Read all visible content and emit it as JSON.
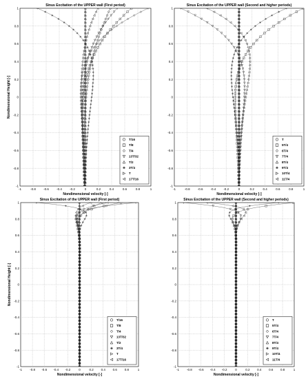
{
  "chart_data": [
    {
      "type": "line",
      "title": "Sinus Excitation of the UPPER wall (First period)",
      "xlabel": "Nondimensional velocity [-]",
      "ylabel": "Nondimensional Height [-]",
      "xlim": [
        -1,
        1
      ],
      "ylim": [
        -1,
        1
      ],
      "grid": true,
      "legend_position": "bottom-right",
      "x_ticks": [
        "-1",
        "-0.8",
        "-0.6",
        "-0.4",
        "-0.2",
        "0",
        "0.2",
        "0.4",
        "0.6",
        "0.8",
        "1"
      ],
      "y_ticks": [
        "1",
        "0.8",
        "0.6",
        "0.4",
        "0.2",
        "0",
        "-0.2",
        "-0.4",
        "-0.6",
        "-0.8",
        "-1"
      ],
      "series": [
        {
          "name": "T/16",
          "marker": "circle",
          "surface": 0.38,
          "k": 1.6
        },
        {
          "name": "T/8",
          "marker": "square",
          "surface": 0.71,
          "k": 1.9
        },
        {
          "name": "T/4",
          "marker": "diamond",
          "surface": 1.0,
          "k": 2.3
        },
        {
          "name": "13T/32",
          "marker": "tri-down",
          "surface": 0.54,
          "k": 1.8
        },
        {
          "name": "T/2",
          "marker": "tri-up",
          "surface": 0.0,
          "k": 1.4
        },
        {
          "name": "3T/4",
          "marker": "star",
          "surface": -1.0,
          "k": 2.3
        },
        {
          "name": "T",
          "marker": "tri-right",
          "surface": 0.0,
          "k": 1.3
        },
        {
          "name": "17T/16",
          "marker": "tri-left",
          "surface": 0.38,
          "k": 1.5
        }
      ]
    },
    {
      "type": "line",
      "title": "Sinus Excitation of the UPPER wall (Second and higher periods)",
      "xlabel": "Nondimensional velocity [-]",
      "ylabel": "",
      "xlim": [
        -1,
        1
      ],
      "ylim": [
        -1,
        1
      ],
      "grid": true,
      "legend_position": "bottom-right",
      "x_ticks": [
        "-1",
        "-0.8",
        "-0.6",
        "-0.4",
        "-0.2",
        "0",
        "0.2",
        "0.4",
        "0.6",
        "0.8",
        "1"
      ],
      "y_ticks": [
        "1",
        "0.8",
        "0.6",
        "0.4",
        "0.2",
        "0",
        "-0.2",
        "-0.4",
        "-0.6",
        "-0.8",
        "-1"
      ],
      "series": [
        {
          "name": "T",
          "marker": "circle",
          "surface": 0.0,
          "k": 1.6
        },
        {
          "name": "5T/4",
          "marker": "square",
          "surface": 1.0,
          "k": 2.3
        },
        {
          "name": "6T/4",
          "marker": "diamond",
          "surface": 0.0,
          "k": 1.6
        },
        {
          "name": "7T/4",
          "marker": "tri-down",
          "surface": -1.0,
          "k": 2.3
        },
        {
          "name": "8T/4",
          "marker": "tri-up",
          "surface": 0.0,
          "k": 1.6
        },
        {
          "name": "9T/4",
          "marker": "star",
          "surface": 1.0,
          "k": 2.3
        },
        {
          "name": "10T/4",
          "marker": "tri-right",
          "surface": 0.0,
          "k": 1.6
        },
        {
          "name": "11T/4",
          "marker": "tri-left",
          "surface": -1.0,
          "k": 2.3
        }
      ]
    },
    {
      "type": "line",
      "title": "Sinus Excitation of the UPPER wall (First period)",
      "xlabel": "Nondimensional velocity [-]",
      "ylabel": "Nondimensional Height [-]",
      "xlim": [
        -1,
        1
      ],
      "ylim": [
        -1,
        1
      ],
      "grid": true,
      "legend_position": "bottom-right",
      "x_ticks": [
        "-1",
        "-0.8",
        "-0.6",
        "-0.4",
        "-0.2",
        "0",
        "0.2",
        "0.4",
        "0.6",
        "0.8",
        "1"
      ],
      "y_ticks": [
        "1",
        "0.8",
        "0.6",
        "0.4",
        "0.2",
        "0",
        "-0.2",
        "-0.4",
        "-0.6",
        "-0.8",
        "-1"
      ],
      "series": [
        {
          "name": "T/16",
          "marker": "circle",
          "surface": 0.38,
          "k": 9
        },
        {
          "name": "T/8",
          "marker": "square",
          "surface": 0.71,
          "k": 10
        },
        {
          "name": "T/4",
          "marker": "diamond",
          "surface": 1.0,
          "k": 12
        },
        {
          "name": "13T/32",
          "marker": "tri-down",
          "surface": 0.54,
          "k": 11
        },
        {
          "name": "T/2",
          "marker": "tri-up",
          "surface": 0.0,
          "k": 9
        },
        {
          "name": "3T/4",
          "marker": "star",
          "surface": -1.0,
          "k": 12
        },
        {
          "name": "T",
          "marker": "tri-right",
          "surface": 0.0,
          "k": 9
        },
        {
          "name": "17T/16",
          "marker": "tri-left",
          "surface": 0.38,
          "k": 9
        }
      ]
    },
    {
      "type": "line",
      "title": "Sinus Excitation of the UPPER wall (Second and higher periods)",
      "xlabel": "Nondimensional velocity [-]",
      "ylabel": "",
      "xlim": [
        -1,
        1
      ],
      "ylim": [
        -1,
        1
      ],
      "grid": true,
      "legend_position": "bottom-right",
      "x_ticks": [
        "-1",
        "-0.8",
        "-0.6",
        "-0.4",
        "-0.2",
        "0",
        "0.2",
        "0.4",
        "0.6",
        "0.8",
        "1"
      ],
      "y_ticks": [
        "1",
        "0.8",
        "0.6",
        "0.4",
        "0.2",
        "0",
        "-0.2",
        "-0.4",
        "-0.6",
        "-0.8",
        "-1"
      ],
      "series": [
        {
          "name": "T",
          "marker": "circle",
          "surface": 0.0,
          "k": 9
        },
        {
          "name": "5T/4",
          "marker": "square",
          "surface": 1.0,
          "k": 12
        },
        {
          "name": "6T/4",
          "marker": "diamond",
          "surface": 0.0,
          "k": 9
        },
        {
          "name": "7T/4",
          "marker": "tri-down",
          "surface": -1.0,
          "k": 12
        },
        {
          "name": "8T/4",
          "marker": "tri-up",
          "surface": 0.0,
          "k": 9
        },
        {
          "name": "9T/4",
          "marker": "star",
          "surface": 1.0,
          "k": 12
        },
        {
          "name": "10T/4",
          "marker": "tri-right",
          "surface": 0.0,
          "k": 9
        },
        {
          "name": "11T/4",
          "marker": "tri-left",
          "surface": -1.0,
          "k": 12
        }
      ]
    }
  ]
}
